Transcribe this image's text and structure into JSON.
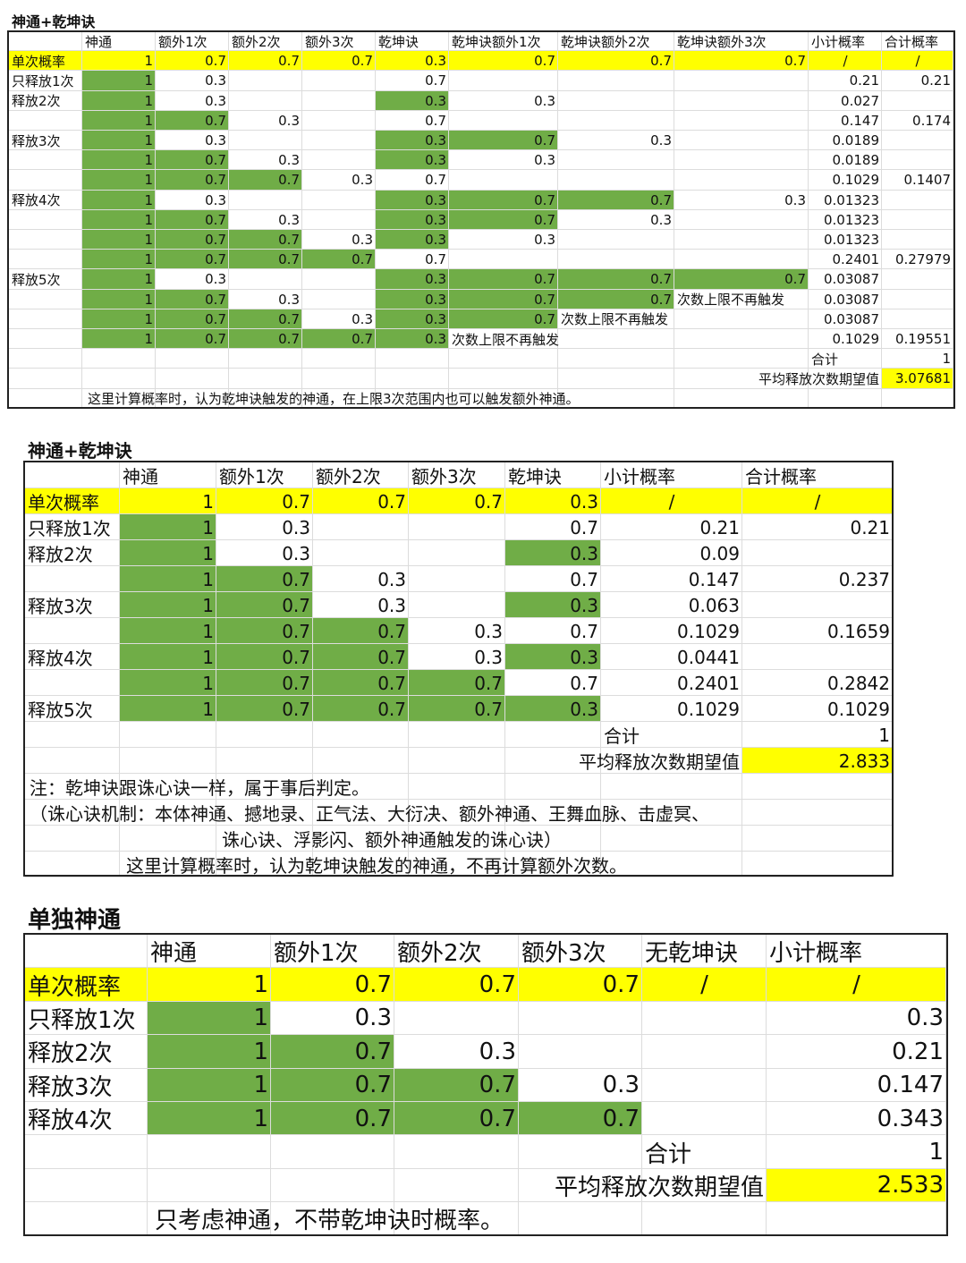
{
  "tables": [
    {
      "title": "神通+乾坤诀",
      "header": [
        null,
        "神通",
        "额外1次",
        "额外2次",
        "额外3次",
        "乾坤诀",
        "乾坤诀额外1次",
        "乾坤诀额外2次",
        "乾坤诀额外3次",
        "小计概率",
        "合计概率"
      ],
      "rows": [
        [
          "单次概率",
          "1",
          "0.7",
          "0.7",
          "0.7",
          "0.3",
          "0.7",
          "0.7",
          "0.7",
          "/",
          "/"
        ],
        [
          "只释放1次",
          "1",
          "0.3",
          null,
          null,
          "0.7",
          null,
          null,
          null,
          "0.21",
          "0.21"
        ],
        [
          "释放2次",
          "1",
          "0.3",
          null,
          null,
          "0.3",
          "0.3",
          null,
          null,
          "0.027",
          null
        ],
        [
          null,
          "1",
          "0.7",
          "0.3",
          null,
          "0.7",
          null,
          null,
          null,
          "0.147",
          "0.174"
        ],
        [
          "释放3次",
          "1",
          "0.3",
          null,
          null,
          "0.3",
          "0.7",
          "0.3",
          null,
          "0.0189",
          null
        ],
        [
          null,
          "1",
          "0.7",
          "0.3",
          null,
          "0.3",
          "0.3",
          null,
          null,
          "0.0189",
          null
        ],
        [
          null,
          "1",
          "0.7",
          "0.7",
          "0.3",
          "0.7",
          null,
          null,
          null,
          "0.1029",
          "0.1407"
        ],
        [
          "释放4次",
          "1",
          "0.3",
          null,
          null,
          "0.3",
          "0.7",
          "0.7",
          "0.3",
          "0.01323",
          null
        ],
        [
          null,
          "1",
          "0.7",
          "0.3",
          null,
          "0.3",
          "0.7",
          "0.3",
          null,
          "0.01323",
          null
        ],
        [
          null,
          "1",
          "0.7",
          "0.7",
          "0.3",
          "0.3",
          "0.3",
          null,
          null,
          "0.01323",
          null
        ],
        [
          null,
          "1",
          "0.7",
          "0.7",
          "0.7",
          "0.7",
          null,
          null,
          null,
          "0.2401",
          "0.27979"
        ],
        [
          "释放5次",
          "1",
          "0.3",
          null,
          null,
          "0.3",
          "0.7",
          "0.7",
          "0.7",
          "0.03087",
          null
        ],
        [
          null,
          "1",
          "0.7",
          "0.3",
          null,
          "0.3",
          "0.7",
          "0.7",
          "次数上限不再触发",
          "0.03087",
          null
        ],
        [
          null,
          "1",
          "0.7",
          "0.7",
          "0.3",
          "0.3",
          "0.7",
          "次数上限不再触发",
          null,
          "0.03087",
          null
        ],
        [
          null,
          "1",
          "0.7",
          "0.7",
          "0.7",
          "0.3",
          "次数上限不再触发",
          null,
          null,
          "0.1029",
          "0.19551"
        ]
      ],
      "total_label": "合计",
      "total_value": "1",
      "expectation_label": "平均释放次数期望值",
      "expectation_value": "3.07681",
      "notes": [
        "这里计算概率时，认为乾坤诀触发的神通，在上限3次范围内也可以触发额外神通。"
      ]
    },
    {
      "title": "神通+乾坤诀",
      "header": [
        null,
        "神通",
        "额外1次",
        "额外2次",
        "额外3次",
        "乾坤诀",
        "小计概率",
        "合计概率"
      ],
      "rows": [
        [
          "单次概率",
          "1",
          "0.7",
          "0.7",
          "0.7",
          "0.3",
          "/",
          "/"
        ],
        [
          "只释放1次",
          "1",
          "0.3",
          null,
          null,
          "0.7",
          "0.21",
          "0.21"
        ],
        [
          "释放2次",
          "1",
          "0.3",
          null,
          null,
          "0.3",
          "0.09",
          null
        ],
        [
          null,
          "1",
          "0.7",
          "0.3",
          null,
          "0.7",
          "0.147",
          "0.237"
        ],
        [
          "释放3次",
          "1",
          "0.7",
          "0.3",
          null,
          "0.3",
          "0.063",
          null
        ],
        [
          null,
          "1",
          "0.7",
          "0.7",
          "0.3",
          "0.7",
          "0.1029",
          "0.1659"
        ],
        [
          "释放4次",
          "1",
          "0.7",
          "0.7",
          "0.3",
          "0.3",
          "0.0441",
          null
        ],
        [
          null,
          "1",
          "0.7",
          "0.7",
          "0.7",
          "0.7",
          "0.2401",
          "0.2842"
        ],
        [
          "释放5次",
          "1",
          "0.7",
          "0.7",
          "0.7",
          "0.3",
          "0.1029",
          "0.1029"
        ]
      ],
      "total_label": "合计",
      "total_value": "1",
      "expectation_label": "平均释放次数期望值",
      "expectation_value": "2.833",
      "notes": [
        "注：乾坤诀跟诛心诀一样，属于事后判定。",
        "（诛心诀机制：本体神通、撼地录、正气法、大衍决、额外神通、王舞血脉、击虚冥、",
        "诛心诀、浮影闪、额外神通触发的诛心诀）",
        "这里计算概率时，认为乾坤诀触发的神通，不再计算额外次数。"
      ]
    },
    {
      "title": "单独神通",
      "header": [
        null,
        "神通",
        "额外1次",
        "额外2次",
        "额外3次",
        "无乾坤诀",
        "小计概率"
      ],
      "rows": [
        [
          "单次概率",
          "1",
          "0.7",
          "0.7",
          "0.7",
          "/",
          "/"
        ],
        [
          "只释放1次",
          "1",
          "0.3",
          null,
          null,
          null,
          "0.3"
        ],
        [
          "释放2次",
          "1",
          "0.7",
          "0.3",
          null,
          null,
          "0.21"
        ],
        [
          "释放3次",
          "1",
          "0.7",
          "0.7",
          "0.3",
          null,
          "0.147"
        ],
        [
          "释放4次",
          "1",
          "0.7",
          "0.7",
          "0.7",
          null,
          "0.343"
        ]
      ],
      "total_label": "合计",
      "total_value": "1",
      "expectation_label": "平均释放次数期望值",
      "expectation_value": "2.533",
      "notes": [
        "只考虑神通，不带乾坤诀时概率。"
      ]
    }
  ]
}
